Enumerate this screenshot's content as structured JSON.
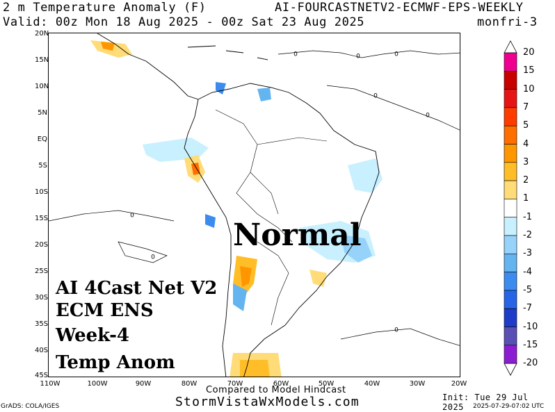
{
  "header": {
    "title_left": "2 m Temperature Anomaly (F)",
    "title_right": "AI-FOURCASTNETV2-ECMWF-EPS-WEEKLY",
    "valid": "Valid: 00z Mon 18 Aug 2025 - 00z Sat 23 Aug 2025",
    "period": "monfri-3"
  },
  "axes": {
    "lat_labels": [
      "20N",
      "15N",
      "10N",
      "5N",
      "EQ",
      "5S",
      "10S",
      "15S",
      "20S",
      "25S",
      "30S",
      "35S",
      "40S",
      "45S"
    ],
    "lon_labels": [
      "110W",
      "100W",
      "90W",
      "80W",
      "70W",
      "60W",
      "50W",
      "40W",
      "30W",
      "20W"
    ]
  },
  "overlay": {
    "lines": [
      "AI 4Cast Net V2",
      "ECM ENS",
      "Week-4",
      "Temp Anom"
    ],
    "normal": "Normal"
  },
  "contour_labels": [
    "0",
    "0",
    "0",
    "0",
    "0",
    "0",
    "0",
    "0"
  ],
  "colorbar": {
    "labels": [
      "20",
      "15",
      "10",
      "7",
      "5",
      "4",
      "3",
      "2",
      "1",
      "-1",
      "-2",
      "-3",
      "-4",
      "-5",
      "-7",
      "-10",
      "-15",
      "-20"
    ],
    "colors": [
      "#f00090",
      "#c80000",
      "#e61414",
      "#ff3c00",
      "#ff6e00",
      "#ff9600",
      "#ffbe28",
      "#ffdc78",
      "#ffffff",
      "#c8f0ff",
      "#96d2fa",
      "#64b4f0",
      "#3c8cf0",
      "#2864e6",
      "#1e3cc8",
      "#5a50b4",
      "#8c1ed2"
    ]
  },
  "footer": {
    "compared": "Compared to Model Hindcast",
    "site": "StormVistaWxModels.com",
    "grads": "GrADS: COLA/IGES",
    "init": "Init: Tue 29 Jul 2025",
    "stamp": "2025-07-29-07:02 UTC"
  }
}
